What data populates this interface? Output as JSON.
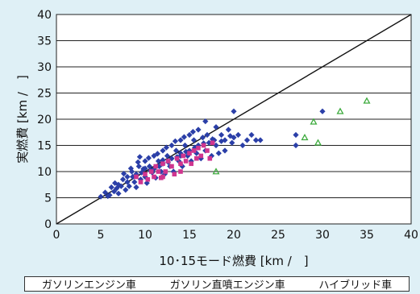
{
  "chart_data": {
    "type": "scatter",
    "xlabel": "10･15モード燃費 [km /　]",
    "ylabel": "実燃費 [km /　]",
    "xlim": [
      0,
      40
    ],
    "ylim": [
      0,
      40
    ],
    "x_ticks": [
      "0",
      "5",
      "10",
      "15",
      "20",
      "25",
      "30",
      "35",
      "40"
    ],
    "y_ticks": [
      "0",
      "5",
      "10",
      "15",
      "20",
      "25",
      "30",
      "35",
      "40"
    ],
    "grid": "horizontal",
    "reference_line": {
      "x": [
        0,
        40
      ],
      "y": [
        0,
        40
      ]
    },
    "legend_position": "bottom",
    "series": [
      {
        "name": "ガソリンエンジン車",
        "marker": "diamond",
        "color": "#2b3fa8",
        "points": [
          [
            5,
            5.2
          ],
          [
            5.5,
            6
          ],
          [
            6,
            5.5
          ],
          [
            6.2,
            7
          ],
          [
            6.5,
            6.2
          ],
          [
            7,
            7.5
          ],
          [
            7,
            5.8
          ],
          [
            7.5,
            8.5
          ],
          [
            7.8,
            6.5
          ],
          [
            8,
            9
          ],
          [
            8.2,
            7.2
          ],
          [
            8.5,
            10
          ],
          [
            8.8,
            8
          ],
          [
            9,
            9.5
          ],
          [
            9,
            7
          ],
          [
            9.3,
            11
          ],
          [
            9.5,
            8.5
          ],
          [
            9.8,
            10.5
          ],
          [
            10,
            12
          ],
          [
            10,
            9
          ],
          [
            10.2,
            7.8
          ],
          [
            10.5,
            11
          ],
          [
            10.8,
            9.8
          ],
          [
            11,
            13
          ],
          [
            11,
            10.5
          ],
          [
            11.2,
            8.8
          ],
          [
            11.5,
            12
          ],
          [
            11.8,
            10
          ],
          [
            12,
            14
          ],
          [
            12,
            11.5
          ],
          [
            12.2,
            9.5
          ],
          [
            12.5,
            13
          ],
          [
            12.8,
            11
          ],
          [
            13,
            15
          ],
          [
            13,
            12.5
          ],
          [
            13.2,
            10
          ],
          [
            13.5,
            14
          ],
          [
            13.8,
            12
          ],
          [
            14,
            16
          ],
          [
            14,
            13.5
          ],
          [
            14.2,
            11
          ],
          [
            14.5,
            15
          ],
          [
            14.8,
            13
          ],
          [
            15,
            17
          ],
          [
            15,
            14
          ],
          [
            15.2,
            12
          ],
          [
            15.5,
            16
          ],
          [
            15.8,
            13.5
          ],
          [
            16,
            18
          ],
          [
            16,
            15
          ],
          [
            16.3,
            12.5
          ],
          [
            16.5,
            16.5
          ],
          [
            16.8,
            14
          ],
          [
            17,
            17
          ],
          [
            17.2,
            15.5
          ],
          [
            17.5,
            13
          ],
          [
            17.8,
            16
          ],
          [
            18,
            18.5
          ],
          [
            18,
            15
          ],
          [
            18.3,
            13.5
          ],
          [
            18.6,
            17
          ],
          [
            19,
            16
          ],
          [
            19,
            14
          ],
          [
            19.4,
            18
          ],
          [
            19.8,
            15.5
          ],
          [
            20,
            16.5
          ],
          [
            20,
            21.5
          ],
          [
            20.5,
            17
          ],
          [
            21,
            15
          ],
          [
            21.5,
            16
          ],
          [
            22,
            17
          ],
          [
            22.5,
            16
          ],
          [
            23,
            16
          ],
          [
            8,
            8
          ],
          [
            8.6,
            9
          ],
          [
            9.6,
            9.8
          ],
          [
            10.6,
            10.2
          ],
          [
            11.6,
            11
          ],
          [
            12.6,
            11.8
          ],
          [
            13.6,
            12.8
          ],
          [
            14.6,
            13.8
          ],
          [
            15.6,
            14.6
          ],
          [
            16.6,
            15.4
          ],
          [
            17.6,
            16.2
          ],
          [
            18.6,
            15.8
          ],
          [
            19.6,
            16.8
          ],
          [
            6.8,
            6.8
          ],
          [
            7.3,
            7.2
          ],
          [
            5.8,
            5.3
          ],
          [
            6.6,
            7.8
          ],
          [
            9.2,
            11.8
          ],
          [
            10.4,
            12.6
          ],
          [
            11.4,
            13.4
          ],
          [
            12.4,
            14.6
          ],
          [
            13.4,
            15.8
          ],
          [
            14.4,
            16.6
          ],
          [
            15.4,
            17.6
          ],
          [
            7.6,
            9.6
          ],
          [
            8.4,
            10.6
          ],
          [
            9.4,
            12.8
          ],
          [
            16.8,
            19.6
          ],
          [
            14,
            13
          ],
          [
            12,
            12.2
          ],
          [
            10,
            10.6
          ],
          [
            27,
            15
          ],
          [
            27,
            17
          ],
          [
            30,
            21.5
          ]
        ]
      },
      {
        "name": "ガソリン直噴エンジン車",
        "marker": "square",
        "color": "#d0358f",
        "points": [
          [
            9,
            9
          ],
          [
            9.5,
            8
          ],
          [
            10,
            9.5
          ],
          [
            10.3,
            8.5
          ],
          [
            10.7,
            10
          ],
          [
            11,
            9
          ],
          [
            11.2,
            11
          ],
          [
            11.5,
            10
          ],
          [
            11.8,
            8.8
          ],
          [
            12,
            11.5
          ],
          [
            12.3,
            10
          ],
          [
            12.6,
            12
          ],
          [
            13,
            11
          ],
          [
            13.3,
            9.5
          ],
          [
            13.6,
            12.5
          ],
          [
            14,
            11.5
          ],
          [
            14.3,
            13
          ],
          [
            14.6,
            12
          ],
          [
            15,
            13.5
          ],
          [
            15.2,
            11.5
          ],
          [
            15.5,
            14
          ],
          [
            15.8,
            12.5
          ],
          [
            16,
            14.5
          ],
          [
            16.3,
            13
          ],
          [
            16.6,
            15
          ],
          [
            17,
            14
          ],
          [
            17.3,
            12.5
          ],
          [
            17.6,
            15.5
          ],
          [
            12,
            9
          ],
          [
            14,
            10
          ]
        ]
      },
      {
        "name": "ハイブリッド車",
        "marker": "triangle-open",
        "color": "#3caa3c",
        "points": [
          [
            18,
            10
          ],
          [
            28,
            16.5
          ],
          [
            29,
            19.5
          ],
          [
            29.5,
            15.5
          ],
          [
            32,
            21.5
          ],
          [
            35,
            23.5
          ]
        ]
      }
    ]
  }
}
